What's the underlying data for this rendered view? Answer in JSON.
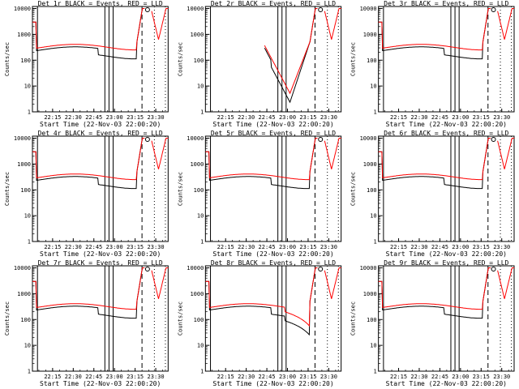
{
  "chart_data": {
    "type": "line",
    "y_scale": "log",
    "ylim": [
      1,
      12000
    ],
    "y_ticks": [
      1,
      10,
      100,
      1000,
      10000
    ],
    "y_tick_labels": [
      "1",
      "10",
      "100",
      "1000",
      "10000"
    ],
    "x_range": [
      "22:00:20",
      "23:39"
    ],
    "x_tick_labels": [
      "22:15",
      "22:30",
      "22:45",
      "23:00",
      "23:15",
      "23:30"
    ],
    "series_colors": {
      "events": "#000000",
      "lld": "#ff0000"
    },
    "panels": [
      {
        "title": "Det  1r  BLACK = Events, RED = LLD",
        "ylabel": "Counts/sec",
        "xlabel": "Start Time (22-Nov-03 22:00:20)",
        "variant": "normal"
      },
      {
        "title": "Det  2r  BLACK = Events, RED = LLD",
        "ylabel": "Counts/sec",
        "xlabel": "Start Time (22-Nov-03 22:00:20)",
        "variant": "gap"
      },
      {
        "title": "Det  3r  BLACK = Events, RED = LLD",
        "ylabel": "Counts/sec",
        "xlabel": "Start Time (22-Nov-03 22:00:20)",
        "variant": "normal"
      },
      {
        "title": "Det  4r  BLACK = Events, RED = LLD",
        "ylabel": "Counts/sec",
        "xlabel": "Start Time (22-Nov-03 22:00:20)",
        "variant": "normal"
      },
      {
        "title": "Det  5r  BLACK = Events, RED = LLD",
        "ylabel": "Counts/sec",
        "xlabel": "Start Time (22-Nov-03 22:00:20)",
        "variant": "five"
      },
      {
        "title": "Det  6r  BLACK = Events, RED = LLD",
        "ylabel": "Counts/sec",
        "xlabel": "Start Time (22-Nov-03 22:00:20)",
        "variant": "normal"
      },
      {
        "title": "Det  7r  BLACK = Events, RED = LLD",
        "ylabel": "Counts/sec",
        "xlabel": "Start Time (22-Nov-03 22:00:20)",
        "variant": "normal"
      },
      {
        "title": "Det  8r  BLACK = Events, RED = LLD",
        "ylabel": "Counts/sec",
        "xlabel": "Start Time (22-Nov-03 22:00:20)",
        "variant": "eight"
      },
      {
        "title": "Det  9r  BLACK = Events, RED = LLD",
        "ylabel": "Counts/sec",
        "xlabel": "Start Time (22-Nov-03 22:00:20)",
        "variant": "normal"
      }
    ]
  }
}
